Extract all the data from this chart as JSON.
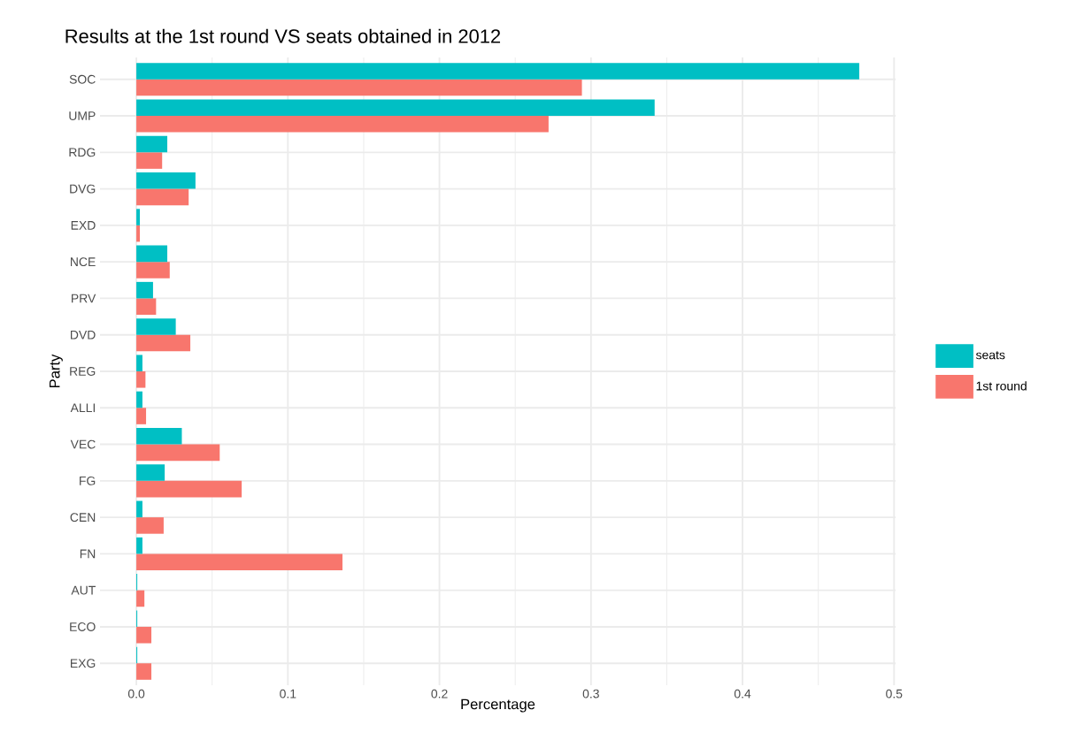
{
  "chart_data": {
    "type": "bar",
    "orientation": "horizontal",
    "title": "Results at the 1st round VS seats obtained  in 2012",
    "xlabel": "Percentage",
    "ylabel": "Party",
    "categories": [
      "SOC",
      "UMP",
      "RDG",
      "DVG",
      "EXD",
      "NCE",
      "PRV",
      "DVD",
      "REG",
      "ALLI",
      "VEC",
      "FG",
      "CEN",
      "FN",
      "AUT",
      "ECO",
      "EXG"
    ],
    "series": [
      {
        "name": "1st round",
        "color": "#f8766d",
        "values": [
          0.294,
          0.272,
          0.017,
          0.0345,
          0.0023,
          0.022,
          0.013,
          0.0356,
          0.006,
          0.0064,
          0.055,
          0.0695,
          0.018,
          0.136,
          0.0053,
          0.0099,
          0.0099
        ]
      },
      {
        "name": "seats",
        "color": "#00bfc4",
        "values": [
          0.477,
          0.342,
          0.0204,
          0.039,
          0.0023,
          0.0204,
          0.011,
          0.026,
          0.004,
          0.004,
          0.03,
          0.0187,
          0.004,
          0.004,
          0.0006,
          0.0006,
          0.0006
        ]
      }
    ],
    "xlim": [
      -0.024,
      0.501
    ],
    "xticks": [
      {
        "value": 0,
        "label": "0.0"
      },
      0.1,
      0.2,
      0.3,
      0.4,
      0.5
    ],
    "grid": true,
    "legend": "right"
  }
}
